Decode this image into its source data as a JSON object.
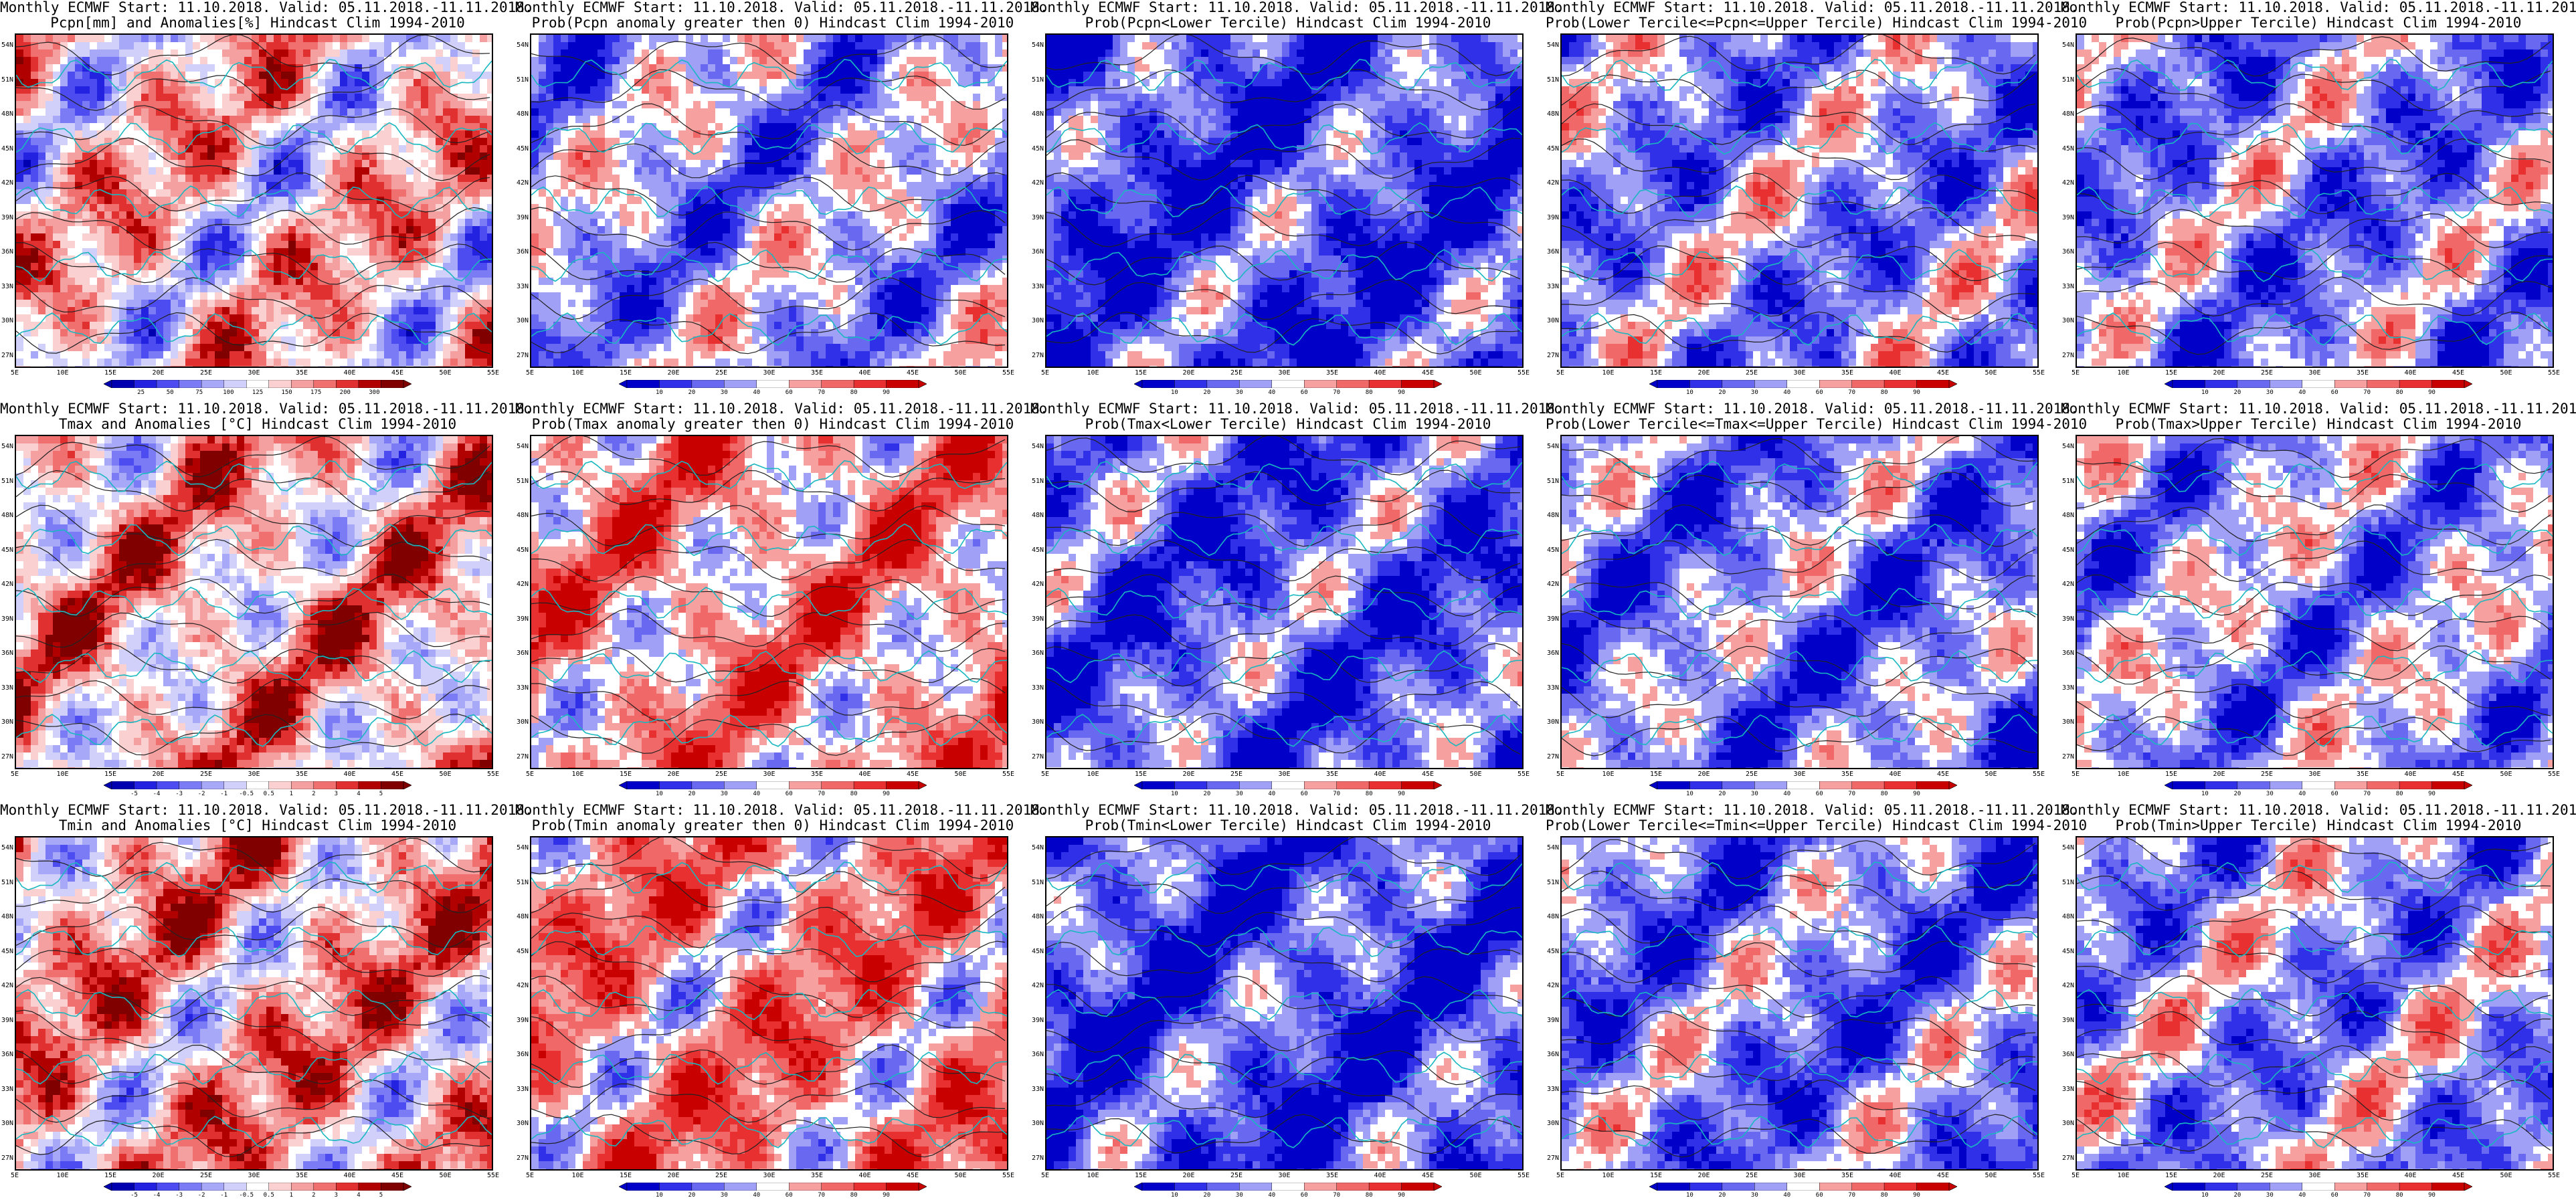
{
  "header_line": "Monthly ECMWF Start: 11.10.2018. Valid: 05.11.2018.-11.11.2018.",
  "lat_labels": [
    "54N",
    "51N",
    "48N",
    "45N",
    "42N",
    "39N",
    "36N",
    "33N",
    "30N",
    "27N"
  ],
  "lon_labels": [
    "5E",
    "10E",
    "15E",
    "20E",
    "25E",
    "30E",
    "35E",
    "40E",
    "45E",
    "50E",
    "55E"
  ],
  "colors": {
    "contour": "#222222",
    "coast": "#19b8c0",
    "anom_scale": [
      "#0000b0",
      "#2222e0",
      "#4c4cf0",
      "#7b7bf5",
      "#a8a8f8",
      "#d0d0fb",
      "#ffffff",
      "#fbd0d0",
      "#f5a0a0",
      "#f07070",
      "#e03030",
      "#b00000",
      "#800000"
    ],
    "prob_scale": [
      "#0000c8",
      "#3030e8",
      "#6868f0",
      "#a0a0f6",
      "#ffffff",
      "#f6a0a0",
      "#f06868",
      "#e83030",
      "#c80000"
    ]
  },
  "colorbars": {
    "precip": [
      "25",
      "50",
      "75",
      "100",
      "125",
      "150",
      "175",
      "200",
      "300"
    ],
    "temp": [
      "-5",
      "-4",
      "-3",
      "-2",
      "-1",
      "-0.5",
      "0.5",
      "1",
      "2",
      "3",
      "4",
      "5"
    ],
    "prob": [
      "10",
      "20",
      "30",
      "40",
      "60",
      "70",
      "80",
      "90"
    ]
  },
  "rows": [
    {
      "panels": [
        {
          "subtitle": "Pcpn[mm] and Anomalies[%] Hindcast Clim 1994-2010",
          "kind": "anom",
          "cbar": "precip",
          "bias": 0.15,
          "seed": 11
        },
        {
          "subtitle": "Prob(Pcpn anomaly greater then 0) Hindcast Clim 1994-2010",
          "kind": "prob",
          "cbar": "prob",
          "bias": -0.25,
          "seed": 12
        },
        {
          "subtitle": "Prob(Pcpn<Lower Tercile) Hindcast Clim 1994-2010",
          "kind": "prob",
          "cbar": "prob",
          "bias": -0.65,
          "seed": 13
        },
        {
          "subtitle": "Prob(Lower Tercile<=Pcpn<=Upper Tercile) Hindcast Clim 1994-2010",
          "kind": "prob",
          "cbar": "prob",
          "bias": -0.3,
          "seed": 14
        },
        {
          "subtitle": "Prob(Pcpn>Upper Tercile) Hindcast Clim 1994-2010",
          "kind": "prob",
          "cbar": "prob",
          "bias": -0.35,
          "seed": 15
        }
      ]
    },
    {
      "panels": [
        {
          "subtitle": "Tmax and Anomalies [°C] Hindcast Clim 1994-2010",
          "kind": "anom",
          "cbar": "temp",
          "bias": 0.25,
          "seed": 21
        },
        {
          "subtitle": "Prob(Tmax anomaly greater then 0) Hindcast Clim 1994-2010",
          "kind": "prob",
          "cbar": "prob",
          "bias": 0.3,
          "seed": 22
        },
        {
          "subtitle": "Prob(Tmax<Lower Tercile) Hindcast Clim 1994-2010",
          "kind": "prob",
          "cbar": "prob",
          "bias": -0.55,
          "seed": 23
        },
        {
          "subtitle": "Prob(Lower Tercile<=Tmax<=Upper Tercile) Hindcast Clim 1994-2010",
          "kind": "prob",
          "cbar": "prob",
          "bias": -0.4,
          "seed": 24
        },
        {
          "subtitle": "Prob(Tmax>Upper Tercile) Hindcast Clim 1994-2010",
          "kind": "prob",
          "cbar": "prob",
          "bias": -0.25,
          "seed": 25
        }
      ]
    },
    {
      "panels": [
        {
          "subtitle": "Tmin and Anomalies [°C] Hindcast Clim 1994-2010",
          "kind": "anom",
          "cbar": "temp",
          "bias": 0.3,
          "seed": 31
        },
        {
          "subtitle": "Prob(Tmin anomaly greater then 0) Hindcast Clim 1994-2010",
          "kind": "prob",
          "cbar": "prob",
          "bias": 0.35,
          "seed": 32
        },
        {
          "subtitle": "Prob(Tmin<Lower Tercile) Hindcast Clim 1994-2010",
          "kind": "prob",
          "cbar": "prob",
          "bias": -0.65,
          "seed": 33
        },
        {
          "subtitle": "Prob(Lower Tercile<=Tmin<=Upper Tercile) Hindcast Clim 1994-2010",
          "kind": "prob",
          "cbar": "prob",
          "bias": -0.4,
          "seed": 34
        },
        {
          "subtitle": "Prob(Tmin>Upper Tercile) Hindcast Clim 1994-2010",
          "kind": "prob",
          "cbar": "prob",
          "bias": -0.25,
          "seed": 35
        }
      ]
    }
  ]
}
